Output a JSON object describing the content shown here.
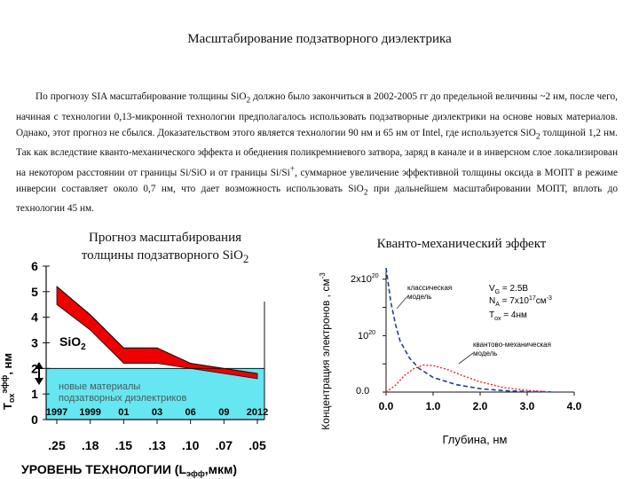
{
  "page": {
    "title": "Масштабирование подзатворного диэлектрика",
    "paragraph": [
      "По прогнозу SIA масштабирование толщины SiO",
      "2",
      " должно было закончиться в 2002-2005 гг до предельной величины ~2 нм, после чего, начиная с технологии 0,13-микронной технологии предполагалось использовать подзатворные диэлектрики на основе новых материалов. Однако, этот прогноз не сбылся. Доказательством этого является технологии 90 нм и 65 нм от Intel, где используется SiO",
      "2",
      " толщиной 1,2 нм. Так как вследствие кванто-механического эффекта и обеднения поликремниевого затвора, заряд в канале и в инверсном слое локализирован на некотором расстоянии от границы Si/SiO и от границы Si/Si",
      "+",
      ", суммарное увеличение эффективной толщины оксида в МОПТ в режиме инверсии составляет около 0,7 нм, что дает возможность использовать SiO",
      "2",
      " при дальнейшем масштабировании МОПТ, вплоть до технологии 45 нм."
    ]
  },
  "left_figure": {
    "title_line1": "Прогноз масштабирования",
    "title_line2_prefix": "толщины подзатворного SiO",
    "title_line2_sub": "2",
    "ylabel_main": "T",
    "ylabel_sub": "ox",
    "ylabel_sup": "эфф",
    "ylabel_unit": ", нм",
    "sio2_label": "SiO",
    "sio2_sub": "2",
    "new_materials_line1": "новые материалы",
    "new_materials_line2": "подзатворных диэлектриков",
    "xlabel_prefix": "УРОВЕНЬ ТЕХНОЛОГИИ (L",
    "xlabel_sub": "эфф",
    "xlabel_suffix": ",мкм)",
    "colors": {
      "band": "#ee0000",
      "cyan": "#66e6f0",
      "arrow": "#000000"
    }
  },
  "right_figure": {
    "title": "Кванто-механический эффект",
    "ylabel": "Концентрация электронов , см",
    "ylabel_sup": "-3",
    "xlabel": "Глубина, нм",
    "tick_2e20_base": "2x10",
    "tick_2e20_exp": "20",
    "tick_1e20_base": "10",
    "tick_1e20_exp": "20",
    "tick_0": "0.0",
    "classic_line1": "классическая",
    "classic_line2": "модель",
    "quantum_line1": "квантово-механическая",
    "quantum_line2": "модель",
    "vg": "V",
    "vg_sub": "G",
    "vg_val": " = 2.5В",
    "na": "N",
    "na_sub": "A",
    "na_val": " = 7x10",
    "na_exp": "17",
    "na_unit": "см",
    "na_unit_exp": "-3",
    "tox": "T",
    "tox_sub": "ox",
    "tox_val": " = 4нм",
    "colors": {
      "classic": "#1f3f9f",
      "quantum": "#ee2222"
    }
  },
  "chart_data": [
    {
      "type": "area",
      "title": "Прогноз масштабирования толщины подзатворного SiO2",
      "xlabel": "УРОВЕНЬ ТЕХНОЛОГИИ (Lэфф,мкм)",
      "ylabel": "Toxэфф, нм",
      "ylim": [
        0,
        6
      ],
      "yticks": [
        "0",
        "1",
        "2",
        "3",
        "4",
        "5",
        "6"
      ],
      "x_years": [
        "1997",
        "1999",
        "01",
        "03",
        "06",
        "09",
        "2012"
      ],
      "x_tech": [
        ".25",
        ".18",
        ".15",
        ".13",
        ".10",
        ".07",
        ".05"
      ],
      "band_upper": [
        5.2,
        4.1,
        2.8,
        2.8,
        2.2,
        2.0,
        1.8
      ],
      "band_lower": [
        4.5,
        3.5,
        2.2,
        2.2,
        2.0,
        1.8,
        1.6
      ],
      "new_materials_threshold": 2.0
    },
    {
      "type": "line",
      "title": "Кванто-механический эффект",
      "xlabel": "Глубина, нм",
      "ylabel": "Концентрация электронов , см-3",
      "xlim": [
        0,
        4.0
      ],
      "xticks": [
        "0.0",
        "1.0",
        "2.0",
        "3.0",
        "4.0"
      ],
      "ylim": [
        0,
        2.2e+20
      ],
      "series": [
        {
          "name": "классическая модель",
          "x": [
            0.0,
            0.1,
            0.2,
            0.3,
            0.5,
            0.7,
            1.0,
            1.5,
            2.0,
            2.5,
            3.0,
            3.5
          ],
          "y": [
            2.2e+20,
            1.6e+20,
            1.2e+20,
            9e+19,
            6e+19,
            4.2e+19,
            2.6e+19,
            1.3e+19,
            6e+18,
            2.5e+18,
            1e+18,
            3e+17
          ]
        },
        {
          "name": "квантово-механическая модель",
          "x": [
            0.0,
            0.2,
            0.4,
            0.6,
            0.8,
            1.0,
            1.3,
            1.6,
            2.0,
            2.5,
            3.0,
            3.4
          ],
          "y": [
            0.0,
            1.2e+19,
            3e+19,
            4.2e+19,
            4.8e+19,
            4.7e+19,
            4e+19,
            3e+19,
            1.8e+19,
            8e+18,
            3e+18,
            1e+18
          ]
        }
      ]
    }
  ]
}
